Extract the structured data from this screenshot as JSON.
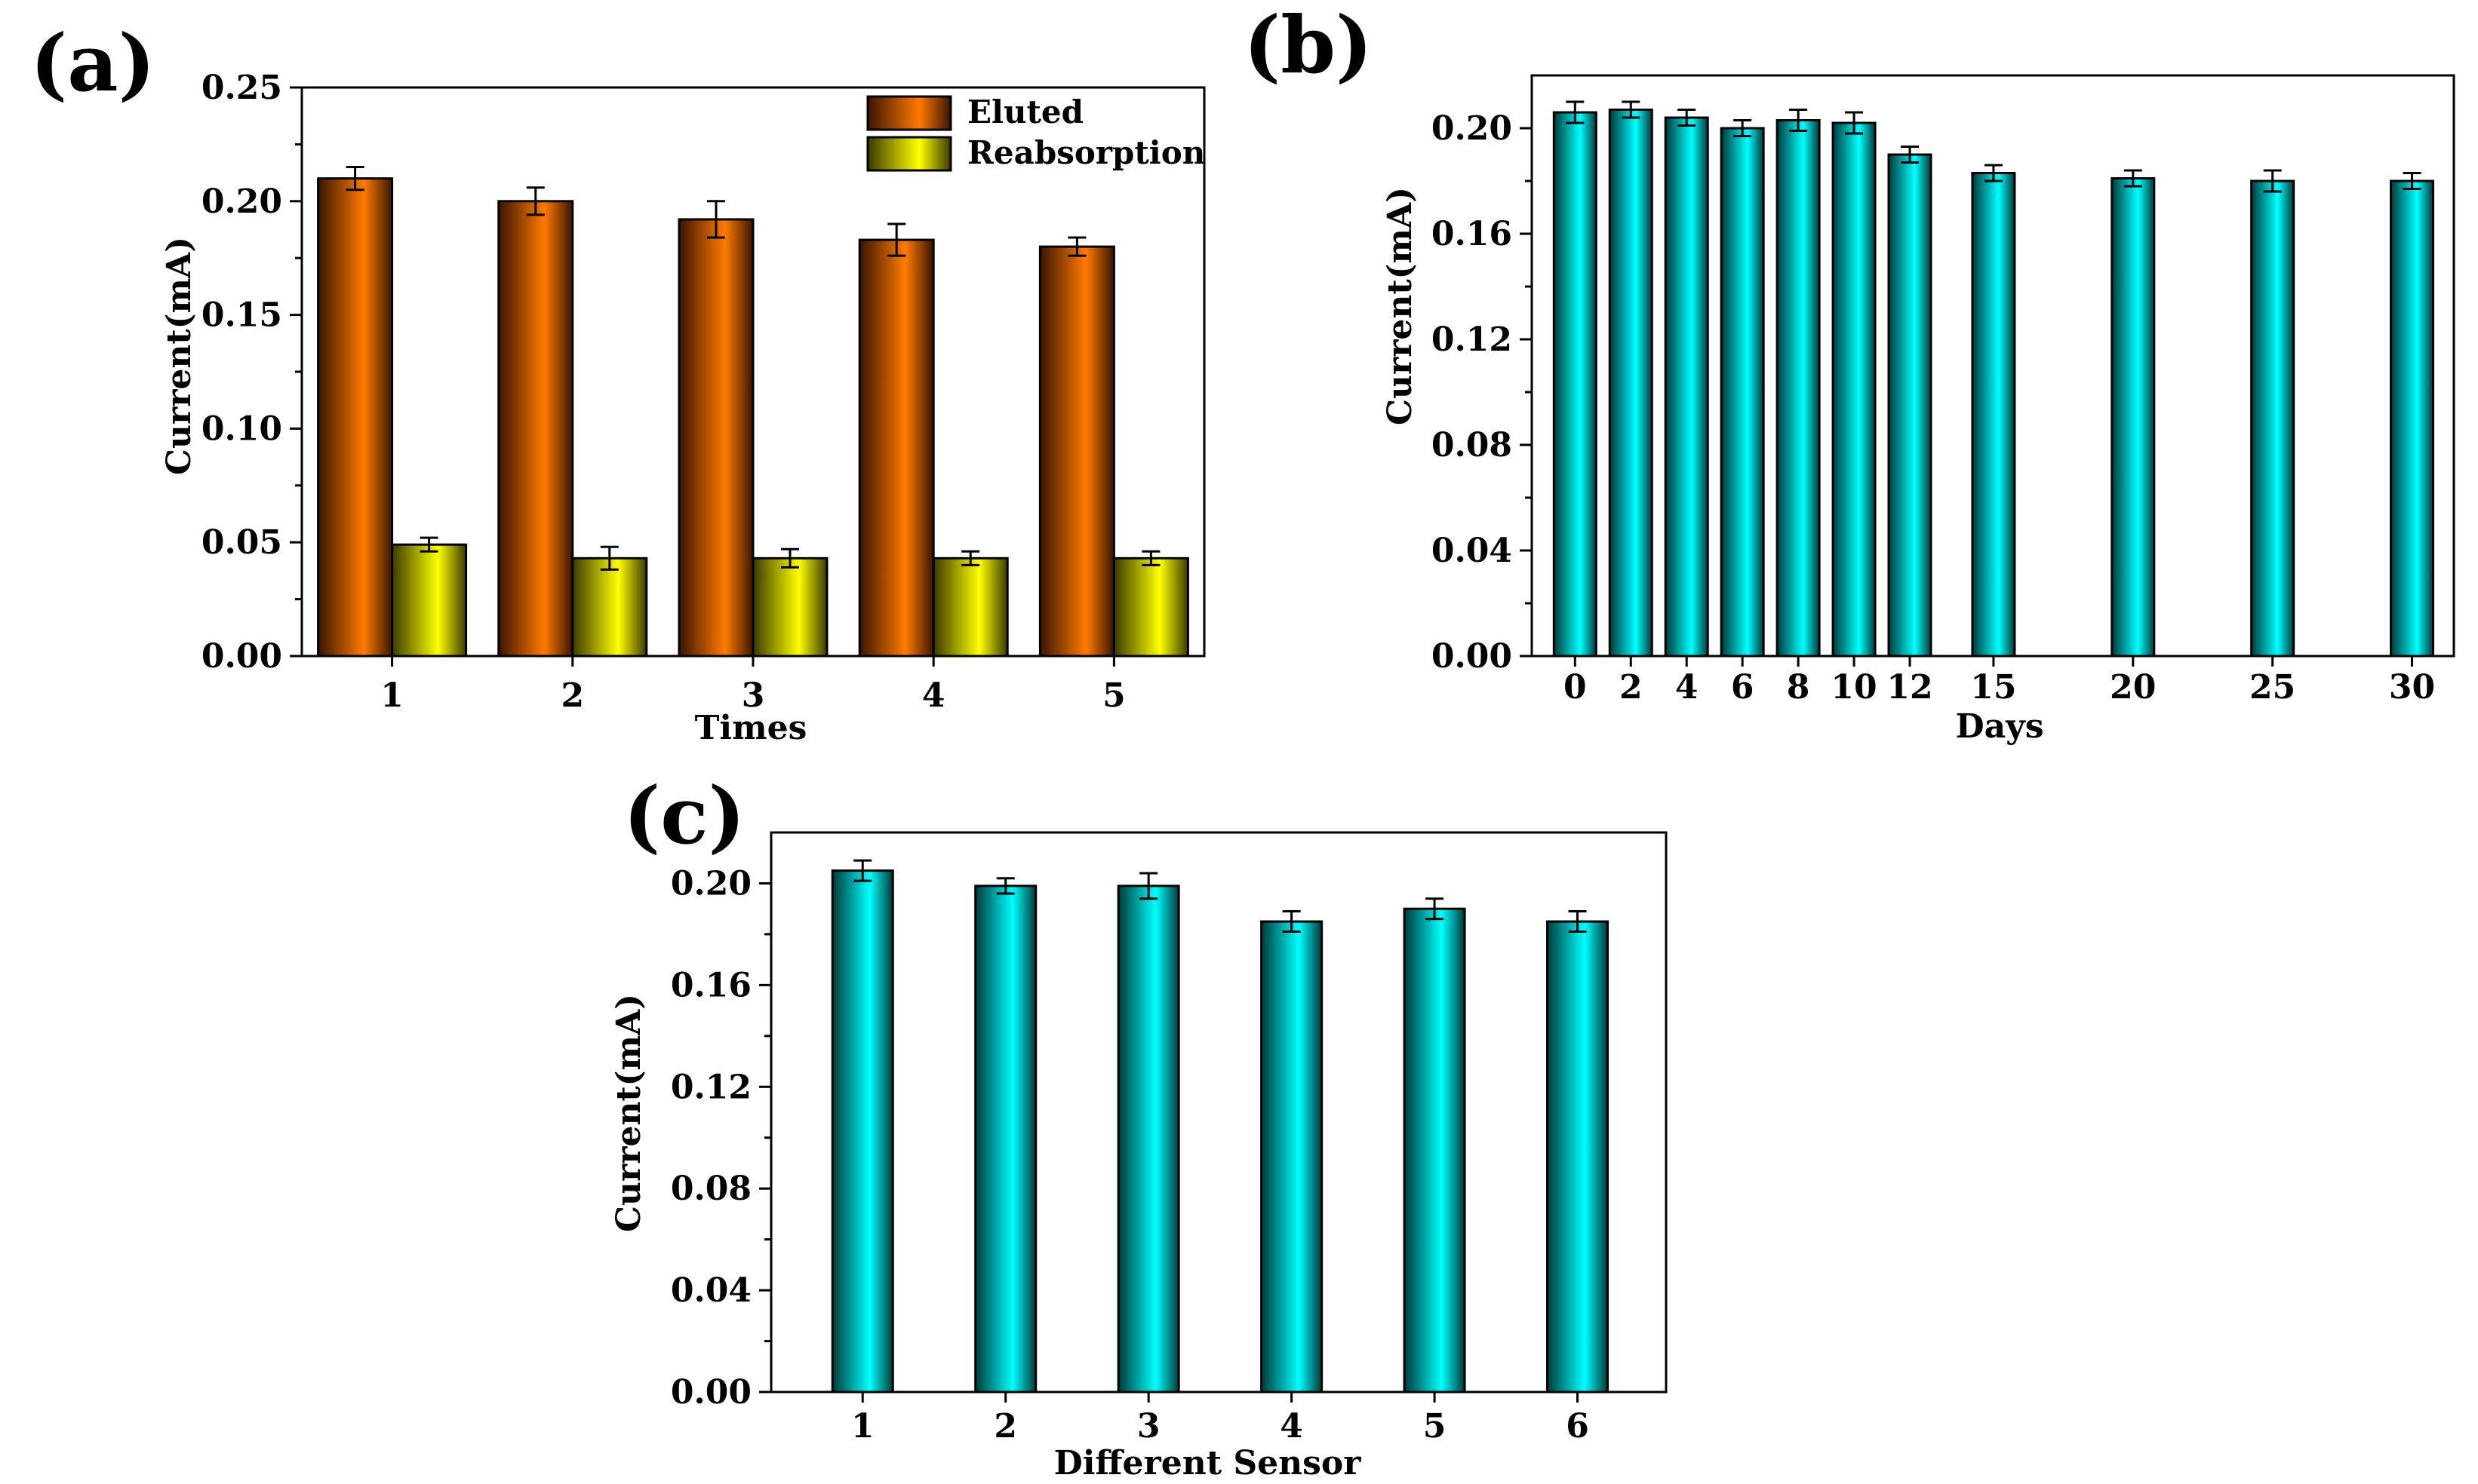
{
  "chart_data": [
    {
      "type": "bar",
      "panel_label": "(a)",
      "categories": [
        "1",
        "2",
        "3",
        "4",
        "5"
      ],
      "series": [
        {
          "name": "Eluted",
          "color_key": "orange",
          "values": [
            0.21,
            0.2,
            0.192,
            0.183,
            0.18
          ],
          "errors": [
            0.005,
            0.006,
            0.008,
            0.007,
            0.004
          ]
        },
        {
          "name": "Reabsorption",
          "color_key": "yellow",
          "values": [
            0.049,
            0.043,
            0.043,
            0.043,
            0.043
          ],
          "errors": [
            0.003,
            0.005,
            0.004,
            0.003,
            0.003
          ]
        }
      ],
      "xlabel": "Times",
      "ylabel": "Current(mA)",
      "ylim": [
        0,
        0.25
      ],
      "yticks": [
        "0.00",
        "0.05",
        "0.10",
        "0.15",
        "0.20",
        "0.25"
      ],
      "legend": "top-right"
    },
    {
      "type": "bar",
      "panel_label": "(b)",
      "categories": [
        "0",
        "2",
        "4",
        "6",
        "8",
        "10",
        "12",
        "15",
        "20",
        "25",
        "30"
      ],
      "x": [
        0,
        2,
        4,
        6,
        8,
        10,
        12,
        15,
        20,
        25,
        30
      ],
      "series": [
        {
          "name": "Current",
          "color_key": "cyan",
          "values": [
            0.206,
            0.207,
            0.204,
            0.2,
            0.203,
            0.202,
            0.19,
            0.183,
            0.181,
            0.18,
            0.18
          ],
          "errors": [
            0.004,
            0.003,
            0.003,
            0.003,
            0.004,
            0.004,
            0.003,
            0.003,
            0.003,
            0.004,
            0.003
          ]
        }
      ],
      "xlabel": "Days",
      "ylabel": "Current(mA)",
      "ylim": [
        0,
        0.22
      ],
      "yticks": [
        "0.00",
        "0.04",
        "0.08",
        "0.12",
        "0.16",
        "0.20"
      ],
      "legend": "none"
    },
    {
      "type": "bar",
      "panel_label": "(c)",
      "categories": [
        "1",
        "2",
        "3",
        "4",
        "5",
        "6"
      ],
      "series": [
        {
          "name": "Current",
          "color_key": "cyan",
          "values": [
            0.205,
            0.199,
            0.199,
            0.185,
            0.19,
            0.185
          ],
          "errors": [
            0.004,
            0.003,
            0.005,
            0.004,
            0.004,
            0.004
          ]
        }
      ],
      "xlabel": "Different Sensor",
      "ylabel": "Current(mA)",
      "ylim": [
        0,
        0.22
      ],
      "yticks": [
        "0.00",
        "0.04",
        "0.08",
        "0.12",
        "0.16",
        "0.20"
      ],
      "legend": "none"
    }
  ],
  "colors": {
    "orange": {
      "dark": "#3a1500",
      "light": "#ff7a00"
    },
    "yellow": {
      "dark": "#3a3a00",
      "light": "#ffff00"
    },
    "cyan": {
      "dark": "#003a3a",
      "light": "#00ffff"
    }
  }
}
